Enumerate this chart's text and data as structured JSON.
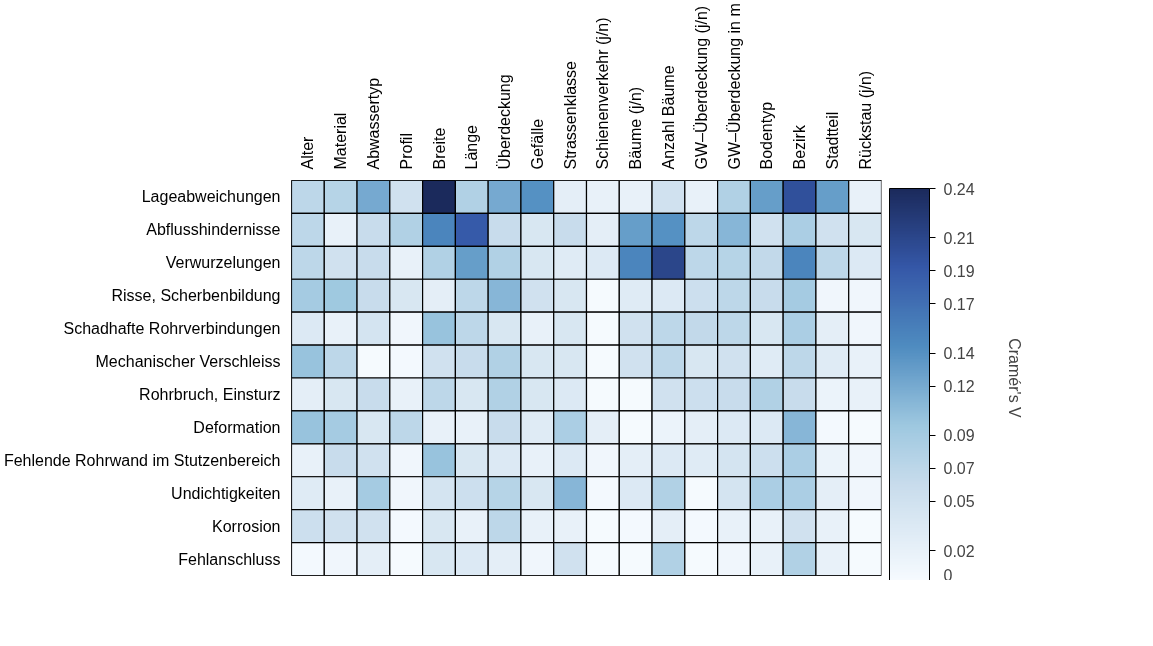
{
  "chart_data": {
    "type": "heatmap",
    "clabel": "Cramér's V",
    "categories": [
      "Alter",
      "Material",
      "Abwassertyp",
      "Profil",
      "Breite",
      "Länge",
      "Überdeckung",
      "Gefälle",
      "Strassenklasse",
      "Schienenverkehr (j/n)",
      "Bäume (j/n)",
      "Anzahl Bäume",
      "GW–Überdeckung (j/n)",
      "GW–Überdeckung in m",
      "Bodentyp",
      "Bezirk",
      "Stadtteil",
      "Rückstau (j/n)"
    ],
    "y_categories": [
      "Lageabweichungen",
      "Abflusshindernisse",
      "Verwurzelungen",
      "Risse, Scherbenbildung",
      "Schadhafte Rohrverbindungen",
      "Mechanischer Verschleiss",
      "Rohrbruch, Einsturz",
      "Deformation",
      "Fehlende Rohrwand im Stutzenbereich",
      "Undichtigkeiten",
      "Korrosion",
      "Fehlanschluss"
    ],
    "cells": [
      [
        0.07,
        0.075,
        0.12,
        0.05,
        0.24,
        0.08,
        0.12,
        0.14,
        0.025,
        0.02,
        0.02,
        0.05,
        0.02,
        0.08,
        0.13,
        0.2,
        0.13,
        0.02
      ],
      [
        0.07,
        0.02,
        0.06,
        0.08,
        0.15,
        0.19,
        0.06,
        0.04,
        0.06,
        0.025,
        0.13,
        0.14,
        0.07,
        0.11,
        0.05,
        0.085,
        0.05,
        0.04
      ],
      [
        0.07,
        0.05,
        0.06,
        0.02,
        0.08,
        0.13,
        0.08,
        0.04,
        0.03,
        0.035,
        0.15,
        0.21,
        0.07,
        0.075,
        0.065,
        0.15,
        0.07,
        0.035
      ],
      [
        0.09,
        0.095,
        0.06,
        0.04,
        0.025,
        0.07,
        0.11,
        0.05,
        0.04,
        0.003,
        0.03,
        0.035,
        0.055,
        0.07,
        0.06,
        0.09,
        0.01,
        0.01
      ],
      [
        0.035,
        0.02,
        0.045,
        0.01,
        0.1,
        0.07,
        0.04,
        0.02,
        0.04,
        0.003,
        0.05,
        0.07,
        0.065,
        0.07,
        0.04,
        0.085,
        0.025,
        0.01
      ],
      [
        0.1,
        0.07,
        0.003,
        0.005,
        0.05,
        0.06,
        0.08,
        0.04,
        0.04,
        0.003,
        0.05,
        0.07,
        0.04,
        0.05,
        0.03,
        0.07,
        0.03,
        0.02
      ],
      [
        0.025,
        0.04,
        0.06,
        0.02,
        0.07,
        0.04,
        0.08,
        0.04,
        0.035,
        0.003,
        0.003,
        0.05,
        0.055,
        0.06,
        0.08,
        0.06,
        0.015,
        0.02
      ],
      [
        0.1,
        0.09,
        0.04,
        0.07,
        0.02,
        0.02,
        0.06,
        0.03,
        0.085,
        0.025,
        0.003,
        0.015,
        0.025,
        0.035,
        0.035,
        0.11,
        0.005,
        0.003
      ],
      [
        0.02,
        0.06,
        0.05,
        0.01,
        0.1,
        0.04,
        0.035,
        0.02,
        0.035,
        0.01,
        0.025,
        0.035,
        0.03,
        0.045,
        0.055,
        0.085,
        0.015,
        0.01
      ],
      [
        0.03,
        0.02,
        0.09,
        0.01,
        0.045,
        0.055,
        0.075,
        0.04,
        0.11,
        0.005,
        0.035,
        0.08,
        0.003,
        0.045,
        0.085,
        0.085,
        0.025,
        0.01
      ],
      [
        0.055,
        0.05,
        0.05,
        0.005,
        0.04,
        0.02,
        0.07,
        0.02,
        0.02,
        0.003,
        0.005,
        0.025,
        0.005,
        0.02,
        0.02,
        0.05,
        0.02,
        0.003
      ],
      [
        0.005,
        0.01,
        0.025,
        0.003,
        0.04,
        0.035,
        0.025,
        0.01,
        0.05,
        0.003,
        0.003,
        0.08,
        0.003,
        0.01,
        0.02,
        0.08,
        0.02,
        0.003
      ]
    ],
    "clim": [
      0,
      0.24
    ],
    "cticks": [
      0,
      0.02,
      0.05,
      0.07,
      0.09,
      0.12,
      0.14,
      0.17,
      0.19,
      0.21,
      0.24
    ]
  }
}
